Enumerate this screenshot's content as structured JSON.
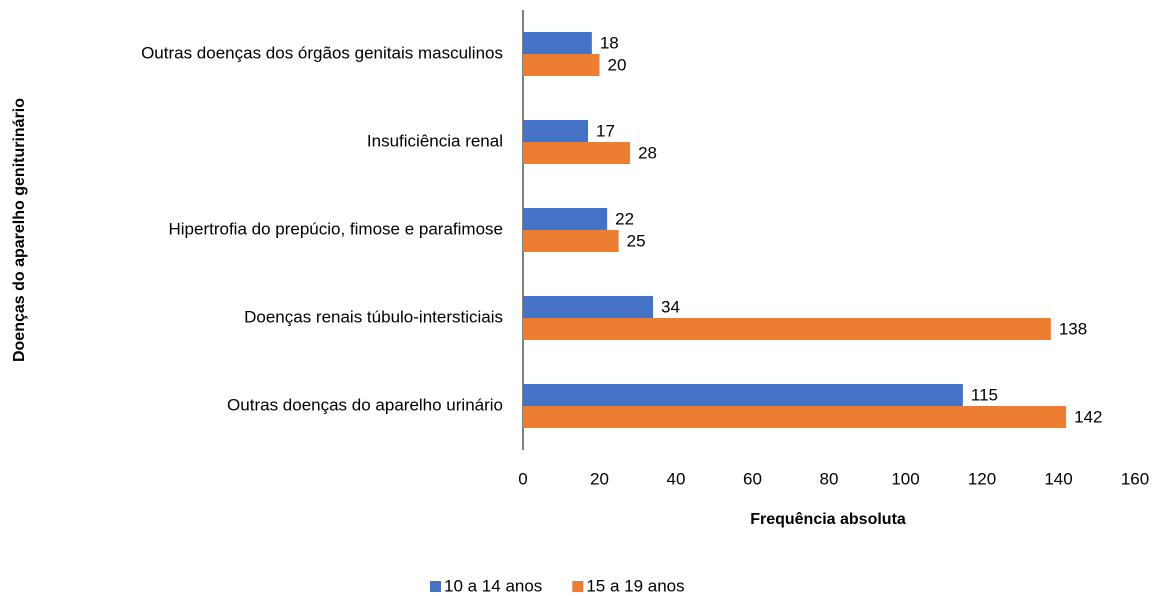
{
  "chart_data": {
    "type": "bar",
    "orientation": "horizontal",
    "categories": [
      "Outras doenças do aparelho urinário",
      "Doenças renais túbulo-intersticiais",
      "Hipertrofia do prepúcio, fimose e parafimose",
      "Insuficiência renal",
      "Outras doenças dos órgãos genitais masculinos"
    ],
    "series": [
      {
        "name": "10 a 14 anos",
        "color": "#4472c4",
        "values": [
          115,
          34,
          22,
          17,
          18
        ]
      },
      {
        "name": "15 a 19 anos",
        "color": "#ed7d31",
        "values": [
          142,
          138,
          25,
          28,
          20
        ]
      }
    ],
    "xlim": [
      0,
      160
    ],
    "xticks": [
      0,
      20,
      40,
      60,
      80,
      100,
      120,
      140,
      160
    ],
    "xlabel": "Frequência absoluta",
    "ylabel": "Doenças do aparelho geniturinário",
    "legend": "bottom",
    "grid": false
  }
}
